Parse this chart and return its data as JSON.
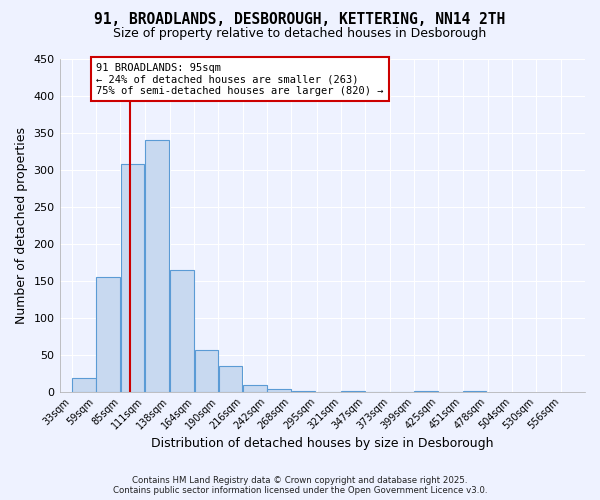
{
  "title": "91, BROADLANDS, DESBOROUGH, KETTERING, NN14 2TH",
  "subtitle": "Size of property relative to detached houses in Desborough",
  "xlabel": "Distribution of detached houses by size in Desborough",
  "ylabel": "Number of detached properties",
  "bar_values": [
    18,
    155,
    308,
    340,
    165,
    57,
    35,
    9,
    3,
    1,
    0,
    1,
    0,
    0,
    1,
    0,
    1
  ],
  "bar_left_edges": [
    33,
    59,
    85,
    111,
    138,
    164,
    190,
    216,
    242,
    268,
    295,
    321,
    347,
    373,
    399,
    425,
    451
  ],
  "bin_width": 26,
  "x_tick_labels": [
    "33sqm",
    "59sqm",
    "85sqm",
    "111sqm",
    "138sqm",
    "164sqm",
    "190sqm",
    "216sqm",
    "242sqm",
    "268sqm",
    "295sqm",
    "321sqm",
    "347sqm",
    "373sqm",
    "399sqm",
    "425sqm",
    "451sqm",
    "478sqm",
    "504sqm",
    "530sqm",
    "556sqm"
  ],
  "x_tick_positions": [
    33,
    59,
    85,
    111,
    138,
    164,
    190,
    216,
    242,
    268,
    295,
    321,
    347,
    373,
    399,
    425,
    451,
    478,
    504,
    530,
    556
  ],
  "ylim": [
    0,
    450
  ],
  "yticks": [
    0,
    50,
    100,
    150,
    200,
    250,
    300,
    350,
    400,
    450
  ],
  "bar_color": "#c8d9f0",
  "bar_edge_color": "#5b9bd5",
  "vline_x": 95,
  "vline_color": "#cc0000",
  "annotation_title": "91 BROADLANDS: 95sqm",
  "annotation_line1": "← 24% of detached houses are smaller (263)",
  "annotation_line2": "75% of semi-detached houses are larger (820) →",
  "annotation_box_color": "#ffffff",
  "annotation_box_edge_color": "#cc0000",
  "footer1": "Contains HM Land Registry data © Crown copyright and database right 2025.",
  "footer2": "Contains public sector information licensed under the Open Government Licence v3.0.",
  "background_color": "#eef2ff",
  "grid_color": "#ffffff",
  "figsize": [
    6.0,
    5.0
  ],
  "dpi": 100
}
